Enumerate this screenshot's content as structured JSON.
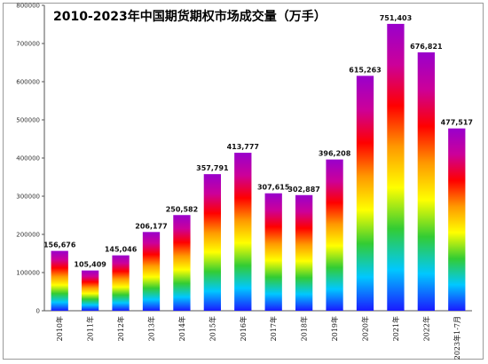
{
  "chart_data": {
    "type": "bar",
    "title": "2010-2023年中国期货期权市场成交量（万手）",
    "categories": [
      "2010年",
      "2011年",
      "2012年",
      "2013年",
      "2014年",
      "2015年",
      "2016年",
      "2017年",
      "2018年",
      "2019年",
      "2020年",
      "2021年",
      "2022年",
      "2023年1-7月"
    ],
    "values": [
      156676,
      105409,
      145046,
      206177,
      250582,
      357791,
      413777,
      307615,
      302887,
      396208,
      615263,
      751403,
      676821,
      477517
    ],
    "data_labels": [
      "156,676",
      "105,409",
      "145,046",
      "206,177",
      "250,582",
      "357,791",
      "413,777",
      "307,615",
      "302,887",
      "396,208",
      "615,263",
      "751,403",
      "676,821",
      "477,517"
    ],
    "ylim": [
      0,
      800000
    ],
    "yticks": [
      0,
      100000,
      200000,
      300000,
      400000,
      500000,
      600000,
      700000,
      800000
    ],
    "ytick_labels": [
      "0",
      "100000",
      "200000",
      "300000",
      "400000",
      "500000",
      "600000",
      "700000",
      "800000"
    ],
    "xlabel": "",
    "ylabel": "",
    "grid": false,
    "legend": "none",
    "bar_gradient_colors": [
      "#1a1aff",
      "#00c8ff",
      "#33cc33",
      "#ffff00",
      "#ff9900",
      "#ff0000",
      "#cc0099",
      "#9900cc"
    ]
  }
}
